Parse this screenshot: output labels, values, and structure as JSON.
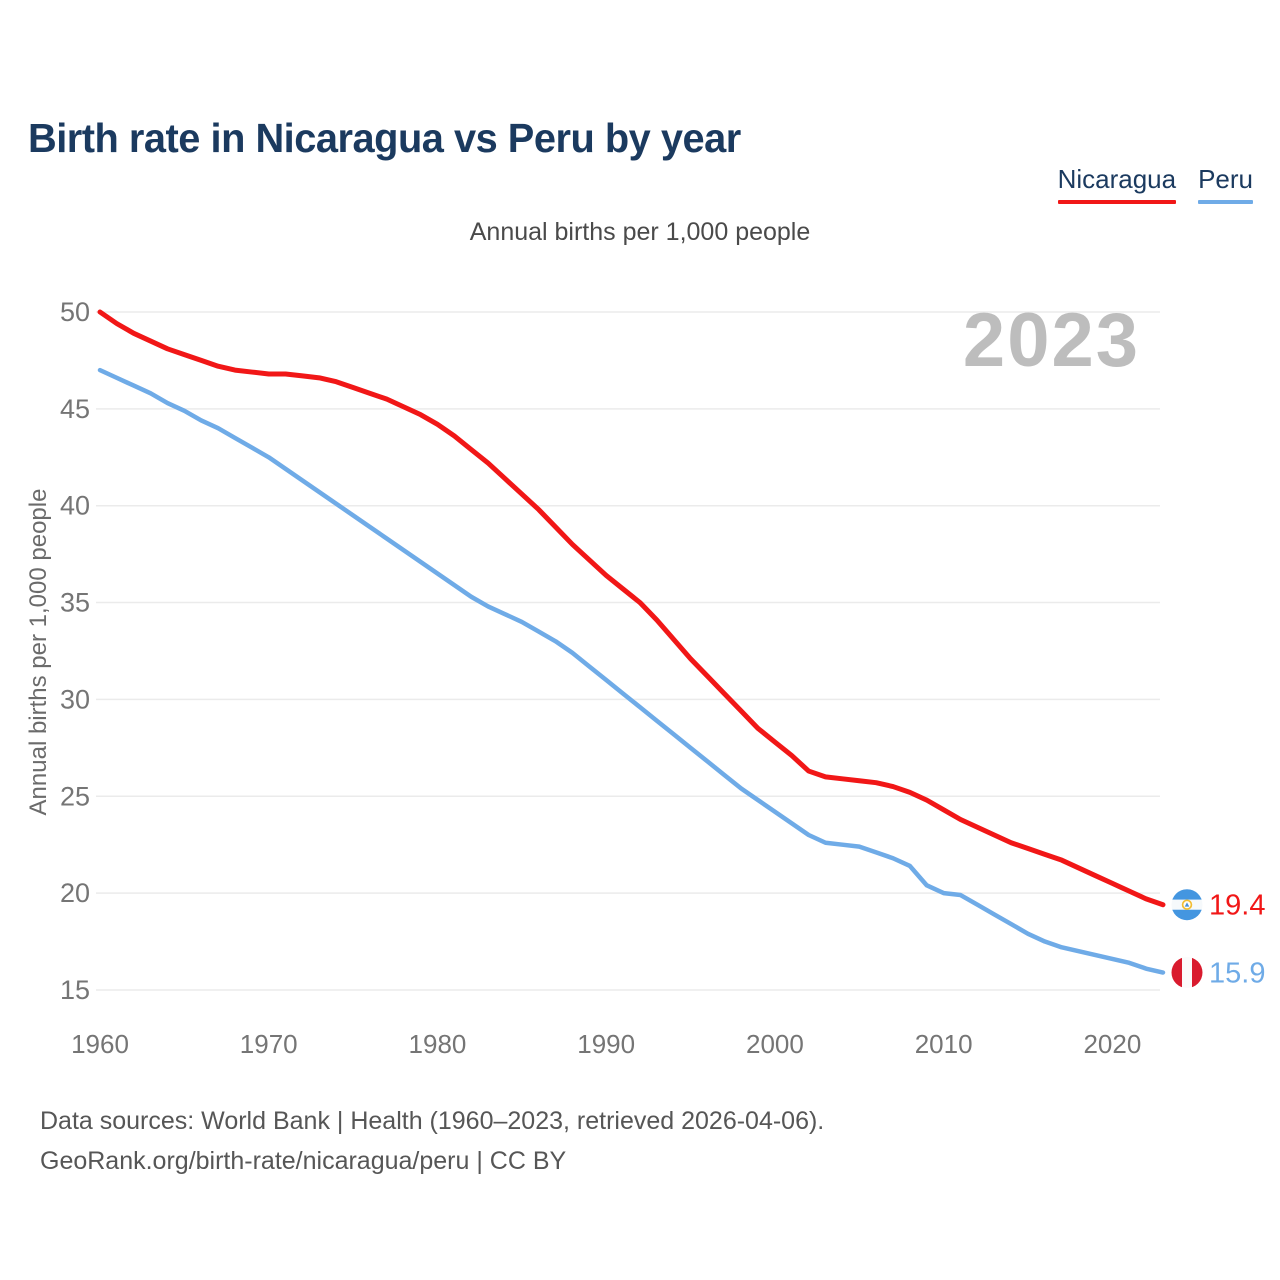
{
  "header": {
    "title": "Birth rate in Nicaragua vs Peru by year"
  },
  "legend": {
    "items": [
      {
        "label": "Nicaragua",
        "color": "#f11717"
      },
      {
        "label": "Peru",
        "color": "#6fabe7"
      }
    ]
  },
  "subtitle": "Annual births per 1,000 people",
  "watermark": "2023",
  "y_axis_title": "Annual births per 1,000 people",
  "end_labels": {
    "nicaragua": "19.4",
    "peru": "15.9"
  },
  "footer": {
    "line1": "Data sources: World Bank | Health (1960–2023, retrieved 2026-04-06).",
    "line2": "GeoRank.org/birth-rate/nicaragua/peru | CC BY"
  },
  "colors": {
    "nicaragua_line": "#f11717",
    "peru_line": "#6fabe7",
    "nicaragua_flag_blue": "#4496e0",
    "peru_flag_red": "#d91b2e",
    "title_text": "#1b3a5f",
    "axis_text": "#757575",
    "grid": "#ebebeb",
    "watermark_text": "#bdbdbd"
  },
  "chart_data": {
    "type": "line",
    "title": "Birth rate in Nicaragua vs Peru by year",
    "subtitle": "Annual births per 1,000 people",
    "ylabel": "Annual births per 1,000 people",
    "grid": "horizontal",
    "legend_position": "top-right",
    "ylim": [
      15,
      50
    ],
    "y_ticks": [
      15,
      20,
      25,
      30,
      35,
      40,
      45,
      50
    ],
    "x_ticks": [
      1960,
      1970,
      1980,
      1990,
      2000,
      2010,
      2020
    ],
    "x": [
      1960,
      1961,
      1962,
      1963,
      1964,
      1965,
      1966,
      1967,
      1968,
      1969,
      1970,
      1971,
      1972,
      1973,
      1974,
      1975,
      1976,
      1977,
      1978,
      1979,
      1980,
      1981,
      1982,
      1983,
      1984,
      1985,
      1986,
      1987,
      1988,
      1989,
      1990,
      1991,
      1992,
      1993,
      1994,
      1995,
      1996,
      1997,
      1998,
      1999,
      2000,
      2001,
      2002,
      2003,
      2004,
      2005,
      2006,
      2007,
      2008,
      2009,
      2010,
      2011,
      2012,
      2013,
      2014,
      2015,
      2016,
      2017,
      2018,
      2019,
      2020,
      2021,
      2022,
      2023
    ],
    "series": [
      {
        "name": "Nicaragua",
        "color": "#f11717",
        "values": [
          50.0,
          49.4,
          48.9,
          48.5,
          48.1,
          47.8,
          47.5,
          47.2,
          47.0,
          46.9,
          46.8,
          46.8,
          46.7,
          46.6,
          46.4,
          46.1,
          45.8,
          45.5,
          45.1,
          44.7,
          44.2,
          43.6,
          42.9,
          42.2,
          41.4,
          40.6,
          39.8,
          38.9,
          38.0,
          37.2,
          36.4,
          35.7,
          35.0,
          34.1,
          33.1,
          32.1,
          31.2,
          30.3,
          29.4,
          28.5,
          27.8,
          27.1,
          26.3,
          26.0,
          25.9,
          25.8,
          25.7,
          25.5,
          25.2,
          24.8,
          24.3,
          23.8,
          23.4,
          23.0,
          22.6,
          22.3,
          22.0,
          21.7,
          21.3,
          20.9,
          20.5,
          20.1,
          19.7,
          19.4
        ]
      },
      {
        "name": "Peru",
        "color": "#6fabe7",
        "values": [
          47.0,
          46.6,
          46.2,
          45.8,
          45.3,
          44.9,
          44.4,
          44.0,
          43.5,
          43.0,
          42.5,
          41.9,
          41.3,
          40.7,
          40.1,
          39.5,
          38.9,
          38.3,
          37.7,
          37.1,
          36.5,
          35.9,
          35.3,
          34.8,
          34.4,
          34.0,
          33.5,
          33.0,
          32.4,
          31.7,
          31.0,
          30.3,
          29.6,
          28.9,
          28.2,
          27.5,
          26.8,
          26.1,
          25.4,
          24.8,
          24.2,
          23.6,
          23.0,
          22.6,
          22.5,
          22.4,
          22.1,
          21.8,
          21.4,
          20.4,
          20.0,
          19.9,
          19.4,
          18.9,
          18.4,
          17.9,
          17.5,
          17.2,
          17.0,
          16.8,
          16.6,
          16.4,
          16.1,
          15.9
        ]
      }
    ],
    "end_labels": {
      "Nicaragua": 19.4,
      "Peru": 15.9
    }
  }
}
